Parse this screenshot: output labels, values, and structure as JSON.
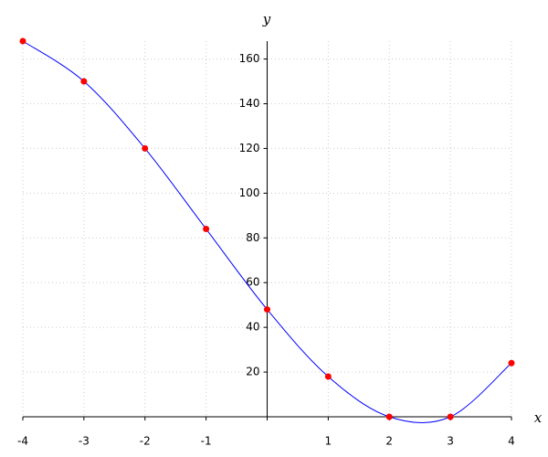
{
  "chart_data": {
    "type": "line",
    "x": [
      -4,
      -3,
      -2,
      -1,
      0,
      1,
      2,
      3,
      4
    ],
    "values": [
      168,
      150,
      120,
      84,
      48,
      18,
      0,
      0,
      24
    ],
    "line_color": "#0000ff",
    "marker_color": "#ff0000",
    "xlabel": "x",
    "ylabel": "y",
    "xlim": [
      -4,
      4
    ],
    "ylim": [
      0,
      168
    ],
    "xticks": [
      -4,
      -3,
      -2,
      -1,
      1,
      2,
      3,
      4
    ],
    "yticks": [
      20,
      40,
      60,
      80,
      100,
      120,
      140,
      160
    ],
    "grid": true
  }
}
